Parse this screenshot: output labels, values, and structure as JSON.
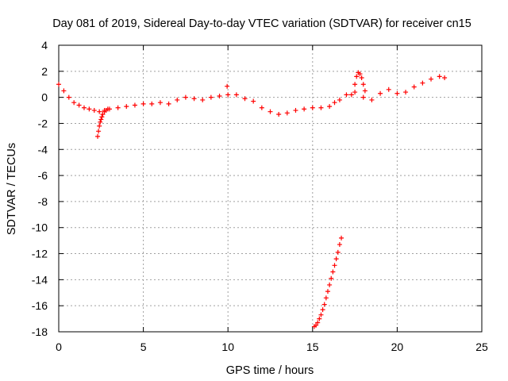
{
  "chart_data": {
    "type": "scatter",
    "title": "Day 081 of 2019, Sidereal Day-to-day VTEC variation (SDTVAR) for receiver cn15",
    "xlabel": "GPS time / hours",
    "ylabel": "SDTVAR / TECUs",
    "xlim": [
      0,
      25
    ],
    "ylim": [
      -18,
      4
    ],
    "xticks": [
      0,
      5,
      10,
      15,
      20,
      25
    ],
    "yticks": [
      -18,
      -16,
      -14,
      -12,
      -10,
      -8,
      -6,
      -4,
      -2,
      0,
      2,
      4
    ],
    "grid": true,
    "marker": "+",
    "color": "#ff0000",
    "series": [
      {
        "name": "main band",
        "x": [
          0.0,
          0.3,
          0.6,
          0.9,
          1.2,
          1.5,
          1.8,
          2.1,
          2.4,
          2.7,
          3.0,
          3.5,
          4.0,
          4.5,
          5.0,
          5.5,
          6.0,
          6.5,
          7.0,
          7.5,
          8.0,
          8.5,
          9.0,
          9.5,
          10.0,
          10.5,
          11.0,
          11.5,
          12.0,
          12.5,
          13.0,
          13.5,
          14.0,
          14.5,
          15.0,
          15.5,
          16.0,
          16.3,
          16.6,
          17.0,
          17.5,
          18.0,
          18.5,
          19.0,
          19.5,
          20.0,
          20.5,
          21.0,
          21.5,
          22.0,
          22.5,
          22.8
        ],
        "y": [
          1.0,
          0.5,
          0.0,
          -0.4,
          -0.6,
          -0.8,
          -0.9,
          -1.0,
          -1.1,
          -1.0,
          -0.9,
          -0.8,
          -0.7,
          -0.6,
          -0.5,
          -0.5,
          -0.4,
          -0.5,
          -0.2,
          0.0,
          -0.1,
          -0.2,
          0.0,
          0.1,
          0.2,
          0.2,
          -0.1,
          -0.3,
          -0.8,
          -1.1,
          -1.3,
          -1.2,
          -1.0,
          -0.9,
          -0.8,
          -0.8,
          -0.7,
          -0.4,
          -0.2,
          0.2,
          0.4,
          0.0,
          -0.2,
          0.3,
          0.6,
          0.3,
          0.4,
          0.8,
          1.1,
          1.4,
          1.6,
          1.5
        ]
      },
      {
        "name": "dip at 2.4h",
        "x": [
          2.3,
          2.35,
          2.4,
          2.45,
          2.5,
          2.55,
          2.6,
          2.7,
          2.8,
          2.9
        ],
        "y": [
          -3.0,
          -2.6,
          -2.2,
          -1.9,
          -1.7,
          -1.5,
          -1.3,
          -1.1,
          -1.0,
          -0.9
        ]
      },
      {
        "name": "hump at 17.7h",
        "x": [
          17.3,
          17.5,
          17.6,
          17.7,
          17.8,
          17.9,
          18.0,
          18.1
        ],
        "y": [
          0.2,
          1.0,
          1.6,
          1.9,
          1.8,
          1.5,
          1.0,
          0.5
        ]
      },
      {
        "name": "spike at 9.9h",
        "x": [
          9.95
        ],
        "y": [
          0.85
        ]
      },
      {
        "name": "outlier segment 15-16.7h",
        "x": [
          15.1,
          15.2,
          15.3,
          15.4,
          15.5,
          15.6,
          15.7,
          15.8,
          15.9,
          16.0,
          16.1,
          16.2,
          16.3,
          16.4,
          16.5,
          16.6,
          16.7
        ],
        "y": [
          -17.6,
          -17.5,
          -17.3,
          -17.0,
          -16.7,
          -16.3,
          -15.9,
          -15.4,
          -14.9,
          -14.4,
          -13.9,
          -13.4,
          -12.9,
          -12.4,
          -11.9,
          -11.3,
          -10.8
        ]
      }
    ]
  }
}
